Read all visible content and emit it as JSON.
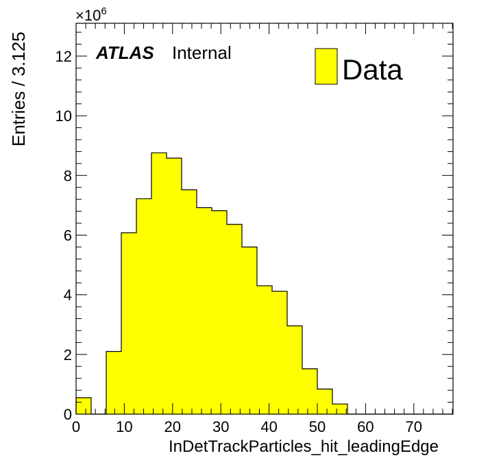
{
  "chart_data": {
    "type": "bar",
    "histogram": true,
    "xlabel": "InDetTrackParticles_hit_leadingEdge",
    "ylabel": "Entries / 3.125",
    "y_multiplier_label": "×10",
    "y_multiplier_exponent": "6",
    "xlim": [
      0,
      78.125
    ],
    "ylim": [
      0,
      13.1
    ],
    "x_ticks": [
      0,
      10,
      20,
      30,
      40,
      50,
      60,
      70
    ],
    "x_tick_labels": [
      "0",
      "10",
      "20",
      "30",
      "40",
      "50",
      "60",
      "70"
    ],
    "y_ticks": [
      0,
      2,
      4,
      6,
      8,
      10,
      12
    ],
    "y_tick_labels": [
      "0",
      "2",
      "4",
      "6",
      "8",
      "10",
      "12"
    ],
    "bin_width": 3.125,
    "bin_edges": [
      0,
      3.125,
      6.25,
      9.375,
      12.5,
      15.625,
      18.75,
      21.875,
      25,
      28.125,
      31.25,
      34.375,
      37.5,
      40.625,
      43.75,
      46.875,
      50,
      53.125,
      56.25,
      59.375,
      62.5,
      65.625,
      68.75,
      71.875,
      75,
      78.125
    ],
    "series": [
      {
        "name": "Data",
        "color": "#ffff00",
        "values": [
          0.55,
          0,
          2.1,
          6.08,
          7.22,
          8.76,
          8.58,
          7.52,
          6.92,
          6.82,
          6.36,
          5.6,
          4.3,
          4.12,
          2.96,
          1.52,
          0.84,
          0.34,
          0,
          0,
          0,
          0,
          0,
          0,
          0
        ]
      }
    ],
    "legend": {
      "position": "top-right",
      "entries": [
        "Data"
      ]
    },
    "annotations": {
      "experiment": "ATLAS",
      "status": "Internal"
    },
    "grid": false
  }
}
